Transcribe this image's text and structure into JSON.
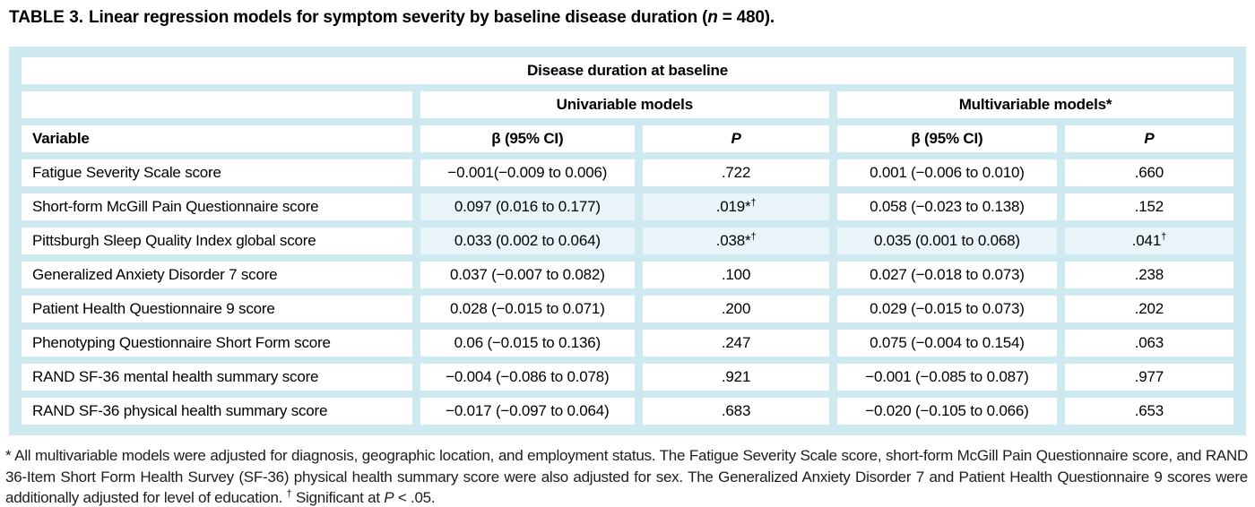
{
  "page": {
    "background": "#ffffff",
    "table_frame_color": "#cfe9f1",
    "highlight_cell_color": "#e8f4f8"
  },
  "title": {
    "label": "TABLE 3.",
    "before_n": "Linear regression models for symptom severity by baseline disease duration (",
    "n": "n",
    "after_n": " = 480)."
  },
  "table": {
    "spanner": "Disease duration at baseline",
    "groups": {
      "univariable": "Univariable models",
      "multivariable": "Multivariable models*"
    },
    "columns": {
      "variable": "Variable",
      "beta": "β (95% CI)",
      "p": "P"
    },
    "rows": [
      {
        "variable": "Fatigue Severity Scale score",
        "uni_beta": "−0.001(−0.009 to 0.006)",
        "uni_p": ".722",
        "uni_p_sup": "",
        "multi_beta": "0.001 (−0.006 to 0.010)",
        "multi_p": ".660",
        "multi_p_sup": "",
        "highlight": []
      },
      {
        "variable": "Short-form McGill Pain Questionnaire score",
        "uni_beta": "0.097 (0.016 to 0.177)",
        "uni_p": ".019*",
        "uni_p_sup": "†",
        "multi_beta": "0.058 (−0.023 to 0.138)",
        "multi_p": ".152",
        "multi_p_sup": "",
        "highlight": [
          "uni_beta",
          "uni_p"
        ]
      },
      {
        "variable": "Pittsburgh Sleep Quality Index global score",
        "uni_beta": "0.033 (0.002 to 0.064)",
        "uni_p": ".038*",
        "uni_p_sup": "†",
        "multi_beta": "0.035 (0.001 to 0.068)",
        "multi_p": ".041",
        "multi_p_sup": "†",
        "highlight": [
          "uni_beta",
          "uni_p",
          "multi_beta",
          "multi_p"
        ]
      },
      {
        "variable": "Generalized Anxiety Disorder 7 score",
        "uni_beta": "0.037 (−0.007 to 0.082)",
        "uni_p": ".100",
        "uni_p_sup": "",
        "multi_beta": "0.027 (−0.018 to 0.073)",
        "multi_p": ".238",
        "multi_p_sup": "",
        "highlight": []
      },
      {
        "variable": "Patient Health Questionnaire 9 score",
        "uni_beta": "0.028 (−0.015 to 0.071)",
        "uni_p": ".200",
        "uni_p_sup": "",
        "multi_beta": "0.029 (−0.015 to 0.073)",
        "multi_p": ".202",
        "multi_p_sup": "",
        "highlight": []
      },
      {
        "variable": "Phenotyping Questionnaire Short Form score",
        "uni_beta": "0.06 (−0.015 to 0.136)",
        "uni_p": ".247",
        "uni_p_sup": "",
        "multi_beta": "0.075 (−0.004 to 0.154)",
        "multi_p": ".063",
        "multi_p_sup": "",
        "highlight": []
      },
      {
        "variable": "RAND SF-36 mental health summary score",
        "uni_beta": "−0.004 (−0.086 to 0.078)",
        "uni_p": ".921",
        "uni_p_sup": "",
        "multi_beta": "−0.001 (−0.085 to 0.087)",
        "multi_p": ".977",
        "multi_p_sup": "",
        "highlight": []
      },
      {
        "variable": "RAND SF-36 physical health summary score",
        "uni_beta": "−0.017 (−0.097 to 0.064)",
        "uni_p": ".683",
        "uni_p_sup": "",
        "multi_beta": "−0.020 (−0.105 to 0.066)",
        "multi_p": ".653",
        "multi_p_sup": "",
        "highlight": []
      }
    ]
  },
  "footnote": {
    "main": "* All multivariable models were adjusted for diagnosis, geographic location, and employment status. The Fatigue Severity Scale score, short-form McGill Pain Questionnaire score, and RAND 36-Item Short Form Health Survey (SF-36) physical health summary score were also adjusted for sex. The Generalized Anxiety Disorder 7 and Patient Health Questionnaire 9 scores were additionally adjusted for level of education. ",
    "dagger": "†",
    "sig_text": " Significant at ",
    "p": "P",
    "end": " < .05."
  }
}
